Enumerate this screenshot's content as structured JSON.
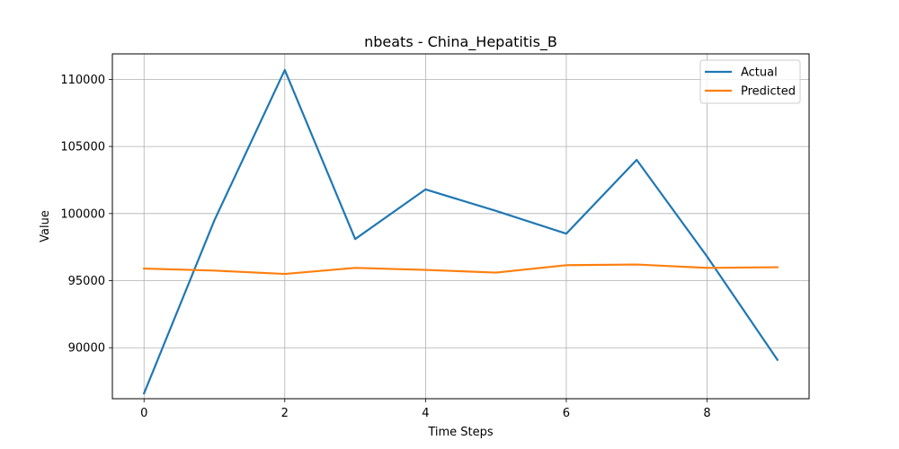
{
  "chart_data": {
    "type": "line",
    "title": "nbeats - China_Hepatitis_B",
    "xlabel": "Time Steps",
    "ylabel": "Value",
    "x": [
      0,
      1,
      2,
      3,
      4,
      5,
      6,
      7,
      8,
      9
    ],
    "xlim": [
      -0.45,
      9.45
    ],
    "ylim": [
      86200,
      111900
    ],
    "xticks": [
      0,
      2,
      4,
      6,
      8
    ],
    "yticks": [
      90000,
      95000,
      100000,
      105000,
      110000
    ],
    "xtick_labels": [
      "0",
      "2",
      "4",
      "6",
      "8"
    ],
    "ytick_labels": [
      "90000",
      "95000",
      "100000",
      "105000",
      "110000"
    ],
    "grid": true,
    "legend_position": "top-right",
    "series": [
      {
        "name": "Actual",
        "color": "#1f77b4",
        "values": [
          86600,
          99500,
          110700,
          98100,
          101800,
          100200,
          98500,
          104000,
          96800,
          89100
        ]
      },
      {
        "name": "Predicted",
        "color": "#ff7f0e",
        "values": [
          95900,
          95750,
          95500,
          95950,
          95800,
          95600,
          96150,
          96200,
          95950,
          96000
        ]
      }
    ]
  }
}
